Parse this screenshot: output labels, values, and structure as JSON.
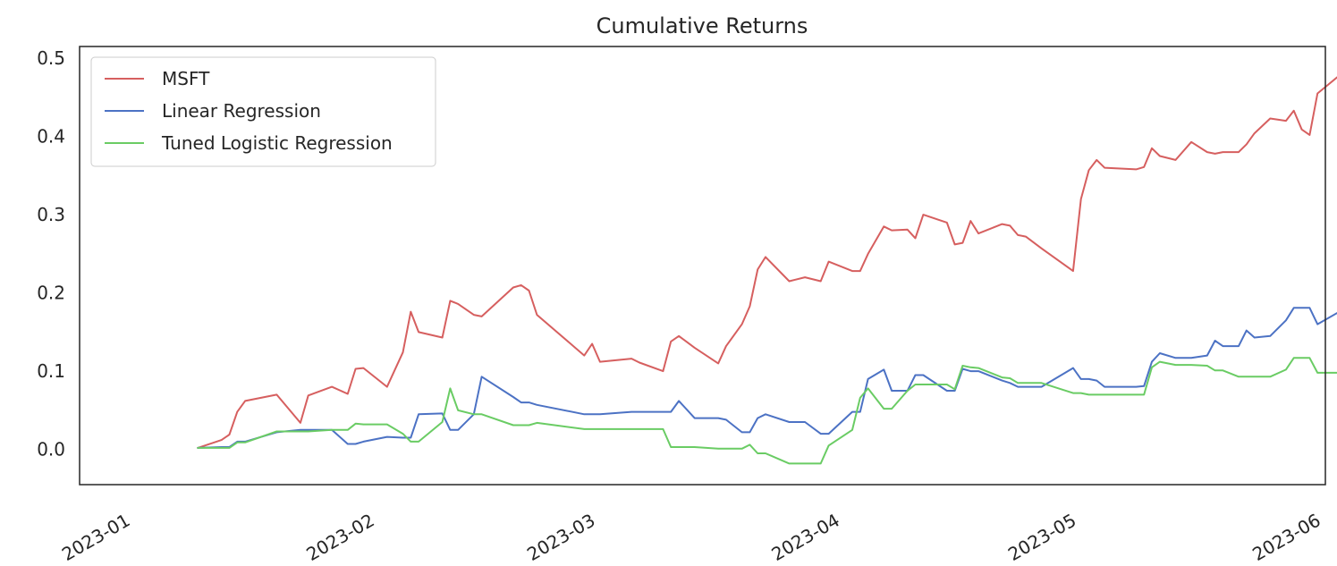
{
  "chart_data": {
    "type": "line",
    "title": "Cumulative Returns",
    "xlabel": "",
    "ylabel": "",
    "xlim": [
      "2022-12-26",
      "2023-06-02"
    ],
    "ylim": [
      -0.045,
      0.515
    ],
    "grid": false,
    "legend_position": "top-left",
    "x_ticks": [
      "2023-01-01",
      "2023-02-01",
      "2023-03-01",
      "2023-04-01",
      "2023-05-01",
      "2023-06-01"
    ],
    "x_tick_labels": [
      "2023-01",
      "2023-02",
      "2023-03",
      "2023-04",
      "2023-05",
      "2023-06"
    ],
    "y_ticks": [
      0.0,
      0.1,
      0.2,
      0.3,
      0.4,
      0.5
    ],
    "y_tick_labels": [
      "0.0",
      "0.1",
      "0.2",
      "0.3",
      "0.4",
      "0.5"
    ],
    "x": [
      "2023-01-10",
      "2023-01-13",
      "2023-01-14",
      "2023-01-15",
      "2023-01-16",
      "2023-01-20",
      "2023-01-23",
      "2023-01-24",
      "2023-01-27",
      "2023-01-29",
      "2023-01-30",
      "2023-01-31",
      "2023-02-03",
      "2023-02-05",
      "2023-02-06",
      "2023-02-07",
      "2023-02-10",
      "2023-02-11",
      "2023-02-12",
      "2023-02-14",
      "2023-02-15",
      "2023-02-19",
      "2023-02-20",
      "2023-02-21",
      "2023-02-22",
      "2023-02-28",
      "2023-03-01",
      "2023-03-02",
      "2023-03-06",
      "2023-03-07",
      "2023-03-10",
      "2023-03-11",
      "2023-03-12",
      "2023-03-14",
      "2023-03-17",
      "2023-03-18",
      "2023-03-20",
      "2023-03-21",
      "2023-03-22",
      "2023-03-23",
      "2023-03-26",
      "2023-03-28",
      "2023-03-30",
      "2023-03-31",
      "2023-04-03",
      "2023-04-04",
      "2023-04-05",
      "2023-04-07",
      "2023-04-08",
      "2023-04-10",
      "2023-04-11",
      "2023-04-12",
      "2023-04-15",
      "2023-04-16",
      "2023-04-17",
      "2023-04-18",
      "2023-04-19",
      "2023-04-22",
      "2023-04-23",
      "2023-04-24",
      "2023-04-25",
      "2023-04-27",
      "2023-05-01",
      "2023-05-02",
      "2023-05-03",
      "2023-05-04",
      "2023-05-05",
      "2023-05-09",
      "2023-05-10",
      "2023-05-11",
      "2023-05-12",
      "2023-05-14",
      "2023-05-16",
      "2023-05-18",
      "2023-05-19",
      "2023-05-20",
      "2023-05-22",
      "2023-05-23",
      "2023-05-24",
      "2023-05-26",
      "2023-05-28",
      "2023-05-29",
      "2023-05-30",
      "2023-05-31",
      "2023-06-01",
      "2023-06-05",
      "2023-06-06"
    ],
    "series": [
      {
        "name": "MSFT",
        "color": "#d65f5f",
        "values": [
          0.002,
          0.012,
          0.019,
          0.048,
          0.062,
          0.07,
          0.034,
          0.069,
          0.08,
          0.071,
          0.103,
          0.104,
          0.08,
          0.124,
          0.176,
          0.15,
          0.143,
          0.19,
          0.186,
          0.172,
          0.17,
          0.207,
          0.21,
          0.203,
          0.172,
          0.12,
          0.135,
          0.112,
          0.116,
          0.111,
          0.1,
          0.138,
          0.145,
          0.13,
          0.11,
          0.132,
          0.16,
          0.183,
          0.23,
          0.246,
          0.215,
          0.22,
          0.215,
          0.24,
          0.228,
          0.228,
          0.25,
          0.285,
          0.28,
          0.281,
          0.27,
          0.3,
          0.29,
          0.262,
          0.264,
          0.292,
          0.276,
          0.288,
          0.286,
          0.274,
          0.272,
          0.257,
          0.228,
          0.32,
          0.357,
          0.37,
          0.36,
          0.358,
          0.361,
          0.385,
          0.375,
          0.37,
          0.393,
          0.38,
          0.378,
          0.38,
          0.38,
          0.39,
          0.404,
          0.423,
          0.42,
          0.433,
          0.409,
          0.402,
          0.455,
          0.488,
          0.471
        ]
      },
      {
        "name": "Linear Regression",
        "color": "#4c72c4",
        "values": [
          0.002,
          0.003,
          0.003,
          0.01,
          0.01,
          0.022,
          0.025,
          0.025,
          0.025,
          0.007,
          0.007,
          0.01,
          0.016,
          0.015,
          0.015,
          0.045,
          0.046,
          0.025,
          0.025,
          0.045,
          0.093,
          0.067,
          0.06,
          0.06,
          0.057,
          0.045,
          0.045,
          0.045,
          0.048,
          0.048,
          0.048,
          0.048,
          0.062,
          0.04,
          0.04,
          0.038,
          0.022,
          0.022,
          0.04,
          0.045,
          0.035,
          0.035,
          0.02,
          0.02,
          0.048,
          0.048,
          0.09,
          0.102,
          0.075,
          0.075,
          0.095,
          0.095,
          0.075,
          0.075,
          0.103,
          0.1,
          0.1,
          0.088,
          0.085,
          0.08,
          0.08,
          0.08,
          0.104,
          0.09,
          0.09,
          0.088,
          0.08,
          0.08,
          0.081,
          0.112,
          0.123,
          0.117,
          0.117,
          0.12,
          0.139,
          0.132,
          0.132,
          0.152,
          0.143,
          0.145,
          0.165,
          0.181,
          0.181,
          0.181,
          0.16,
          0.183,
          0.168
        ]
      },
      {
        "name": "Tuned Logistic Regression",
        "color": "#6acc64",
        "values": [
          0.002,
          0.002,
          0.002,
          0.009,
          0.009,
          0.023,
          0.023,
          0.023,
          0.025,
          0.025,
          0.033,
          0.032,
          0.032,
          0.02,
          0.01,
          0.01,
          0.035,
          0.078,
          0.05,
          0.045,
          0.045,
          0.031,
          0.031,
          0.031,
          0.034,
          0.026,
          0.026,
          0.026,
          0.026,
          0.026,
          0.026,
          0.003,
          0.003,
          0.003,
          0.001,
          0.001,
          0.001,
          0.006,
          -0.005,
          -0.005,
          -0.018,
          -0.018,
          -0.018,
          0.005,
          0.025,
          0.066,
          0.078,
          0.052,
          0.052,
          0.075,
          0.083,
          0.083,
          0.083,
          0.077,
          0.107,
          0.105,
          0.104,
          0.092,
          0.091,
          0.085,
          0.085,
          0.085,
          0.072,
          0.072,
          0.07,
          0.07,
          0.07,
          0.07,
          0.07,
          0.105,
          0.112,
          0.108,
          0.108,
          0.107,
          0.101,
          0.101,
          0.093,
          0.093,
          0.093,
          0.093,
          0.102,
          0.117,
          0.117,
          0.117,
          0.098,
          0.098,
          0.121
        ]
      }
    ]
  }
}
